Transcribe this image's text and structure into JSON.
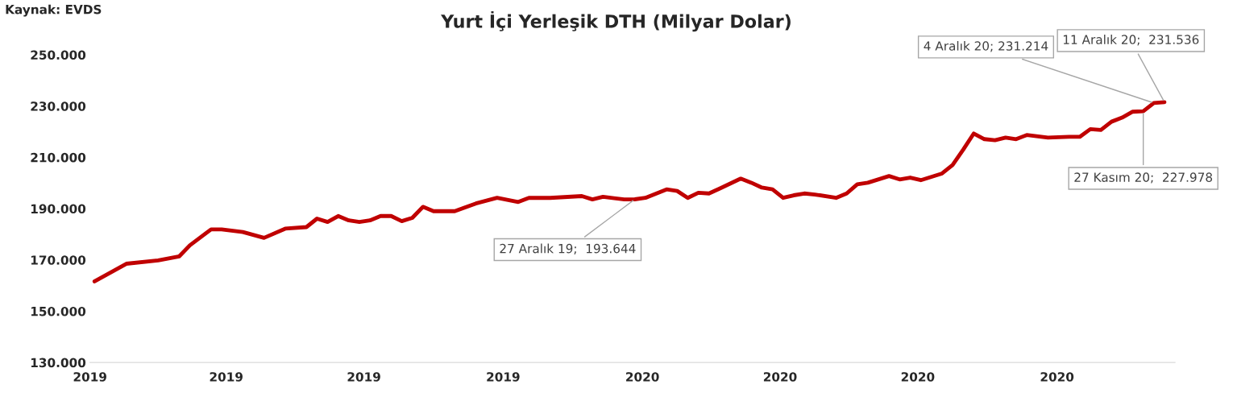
{
  "chart_data": {
    "type": "line",
    "title": "Yurt İçi Yerleşik DTH (Milyar Dolar)",
    "x": [
      "2019-01-04",
      "2019-01-25",
      "2019-02-15",
      "2019-03-01",
      "2019-03-08",
      "2019-03-22",
      "2019-03-29",
      "2019-04-12",
      "2019-04-26",
      "2019-05-10",
      "2019-05-24",
      "2019-05-31",
      "2019-06-07",
      "2019-06-14",
      "2019-06-21",
      "2019-06-28",
      "2019-07-05",
      "2019-07-12",
      "2019-07-19",
      "2019-07-26",
      "2019-08-02",
      "2019-08-09",
      "2019-08-16",
      "2019-08-30",
      "2019-09-13",
      "2019-09-27",
      "2019-10-11",
      "2019-10-18",
      "2019-11-01",
      "2019-11-22",
      "2019-11-29",
      "2019-12-06",
      "2019-12-20",
      "2019-12-27",
      "2020-01-03",
      "2020-01-17",
      "2020-01-24",
      "2020-01-31",
      "2020-02-07",
      "2020-02-14",
      "2020-02-21",
      "2020-03-06",
      "2020-03-13",
      "2020-03-20",
      "2020-03-27",
      "2020-04-03",
      "2020-04-10",
      "2020-04-17",
      "2020-04-24",
      "2020-05-08",
      "2020-05-15",
      "2020-05-22",
      "2020-05-29",
      "2020-06-12",
      "2020-06-19",
      "2020-06-26",
      "2020-07-03",
      "2020-07-17",
      "2020-07-24",
      "2020-07-31",
      "2020-08-07",
      "2020-08-14",
      "2020-08-21",
      "2020-08-28",
      "2020-09-04",
      "2020-09-11",
      "2020-09-25",
      "2020-10-09",
      "2020-10-16",
      "2020-10-23",
      "2020-10-30",
      "2020-11-06",
      "2020-11-13",
      "2020-11-20",
      "2020-11-27",
      "2020-12-04",
      "2020-12-11"
    ],
    "series": [
      {
        "color": "#c00000",
        "values": [
          161.6,
          168.5,
          169.8,
          171.4,
          175.7,
          181.9,
          181.9,
          180.9,
          178.6,
          182.2,
          182.8,
          186.1,
          184.8,
          187.1,
          185.4,
          184.8,
          185.4,
          187.1,
          187.1,
          185.1,
          186.4,
          190.7,
          189.0,
          189.0,
          192.0,
          194.2,
          192.6,
          194.2,
          194.2,
          194.9,
          193.6,
          194.6,
          193.6,
          193.644,
          194.2,
          197.5,
          196.9,
          194.2,
          196.2,
          195.9,
          197.8,
          201.7,
          200.1,
          198.2,
          197.5,
          194.2,
          195.2,
          195.9,
          195.5,
          194.2,
          195.9,
          199.5,
          200.1,
          202.7,
          201.4,
          202.1,
          201.1,
          203.7,
          207.0,
          213.0,
          219.3,
          217.1,
          216.7,
          217.7,
          217.1,
          218.7,
          217.7,
          218.0,
          218.0,
          221.0,
          220.7,
          223.9,
          225.5,
          227.8,
          227.978,
          231.214,
          231.536
        ]
      }
    ],
    "xlim": [
      "2019-01-01",
      "2020-12-18"
    ],
    "xticks": [
      {
        "value": "2019-01-01",
        "label": "2019"
      },
      {
        "value": "2019-04-01",
        "label": "2019"
      },
      {
        "value": "2019-07-01",
        "label": "2019"
      },
      {
        "value": "2019-10-01",
        "label": "2019"
      },
      {
        "value": "2020-01-01",
        "label": "2020"
      },
      {
        "value": "2020-04-01",
        "label": "2020"
      },
      {
        "value": "2020-07-01",
        "label": "2020"
      },
      {
        "value": "2020-10-01",
        "label": "2020"
      }
    ],
    "ylim": [
      130,
      250
    ],
    "yticks": [
      {
        "value": 130,
        "label": "130.000"
      },
      {
        "value": 150,
        "label": "150.000"
      },
      {
        "value": 170,
        "label": "170.000"
      },
      {
        "value": 190,
        "label": "190.000"
      },
      {
        "value": 210,
        "label": "210.000"
      },
      {
        "value": 230,
        "label": "230.000"
      },
      {
        "value": 250,
        "label": "250.000"
      }
    ],
    "annotations": [
      "Kaynak: EVDS",
      {
        "text": "27 Aralık 19;  193.644",
        "x": "2019-12-27",
        "y": 193.644
      },
      {
        "text": "27 Kasım 20;  227.978",
        "x": "2020-11-27",
        "y": 227.978
      },
      {
        "text": "4 Aralık 20; 231.214",
        "x": "2020-12-04",
        "y": 231.214
      },
      {
        "text": "11 Aralık 20;  231.536",
        "x": "2020-12-11",
        "y": 231.536
      }
    ],
    "grid": false,
    "legend": false,
    "marker": "none",
    "line_style": "solid"
  }
}
